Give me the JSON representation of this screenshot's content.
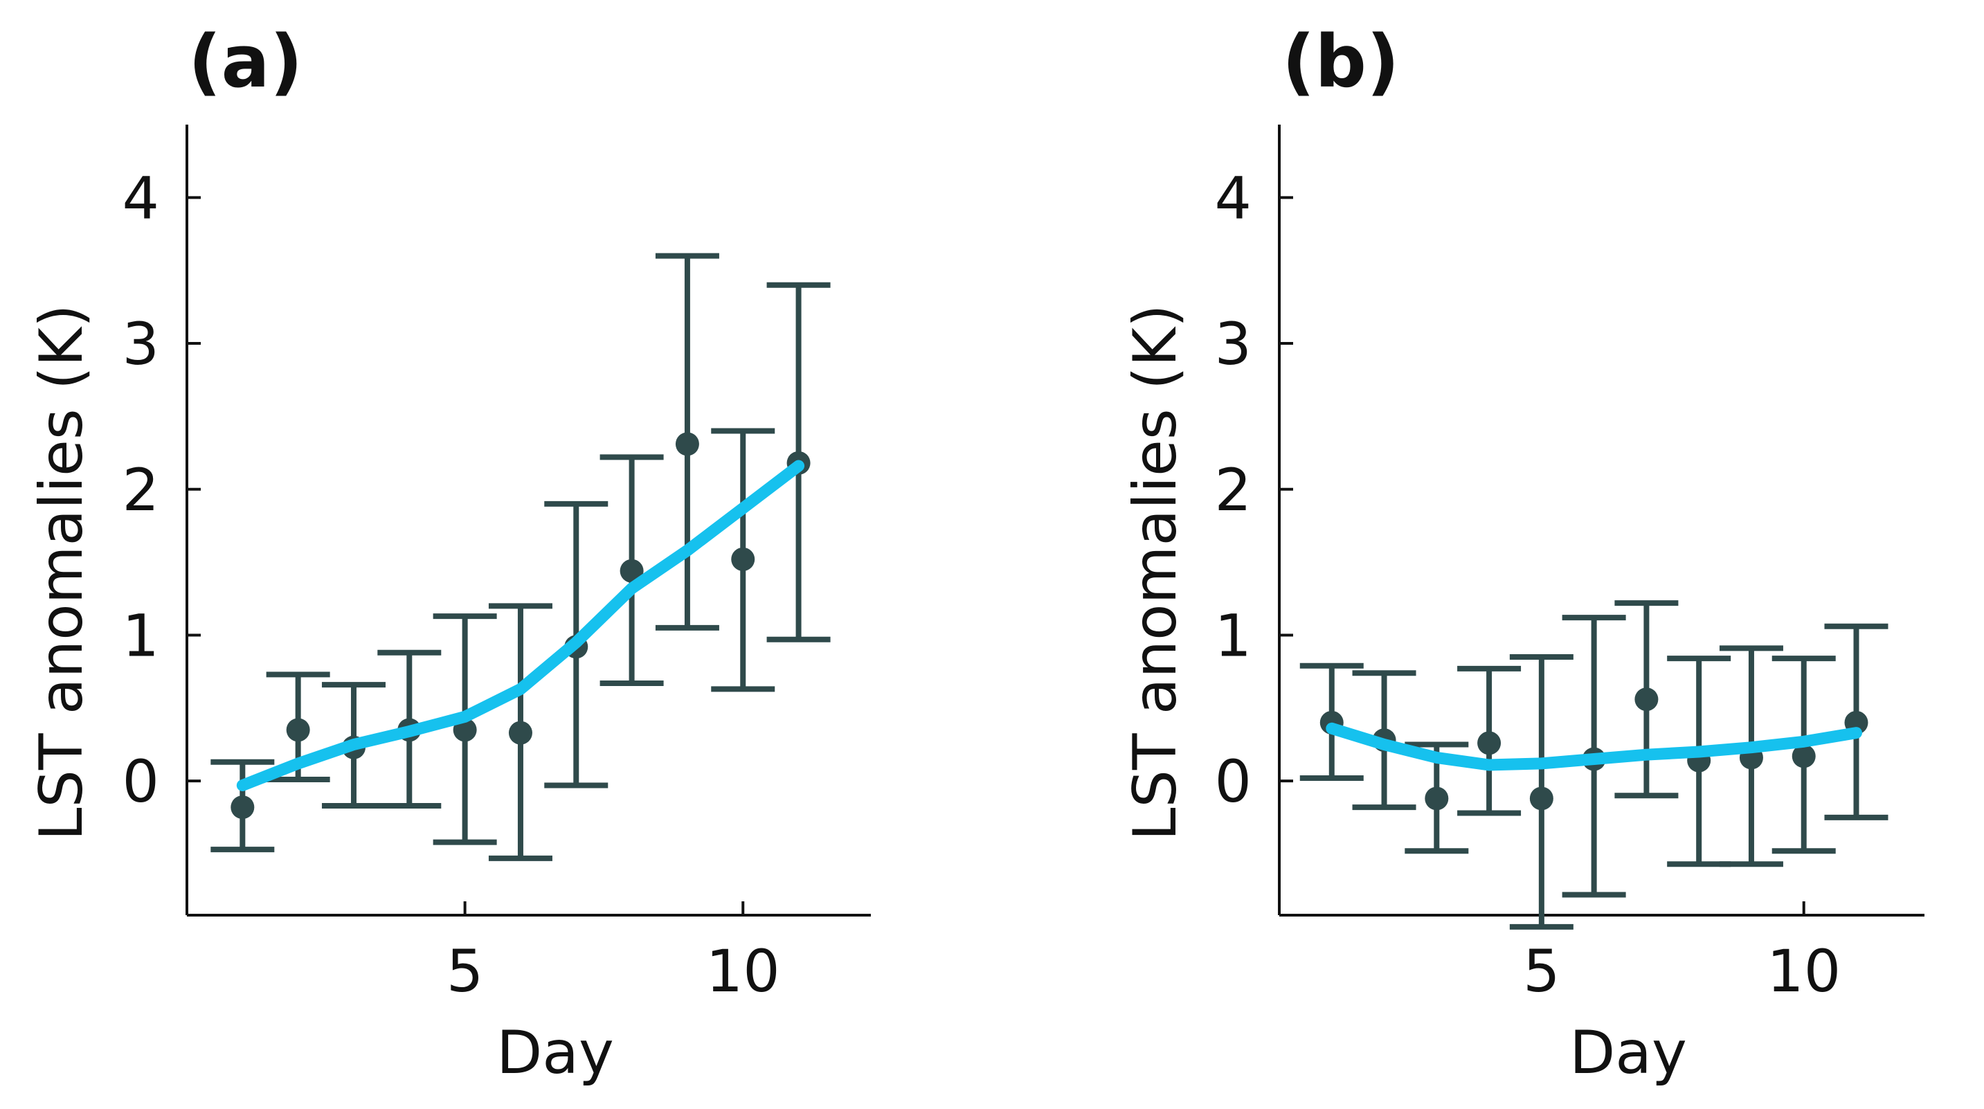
{
  "chart_data": [
    {
      "type": "line",
      "panel_label": "(a)",
      "title": "",
      "xlabel": "Day",
      "ylabel": "LST anomalies (K)",
      "xlim": [
        0.0,
        12.3
      ],
      "ylim": [
        -0.92,
        4.5
      ],
      "xticks": [
        5,
        10
      ],
      "yticks": [
        0,
        1,
        2,
        3,
        4
      ],
      "grid": false,
      "points": {
        "name": "mean",
        "x": [
          1,
          2,
          3,
          4,
          5,
          6,
          7,
          8,
          9,
          10,
          11
        ],
        "y": [
          -0.18,
          0.35,
          0.23,
          0.35,
          0.35,
          0.33,
          0.92,
          1.44,
          2.31,
          1.52,
          2.18
        ],
        "err_low": [
          -0.47,
          0.01,
          -0.17,
          -0.17,
          -0.42,
          -0.53,
          -0.03,
          0.67,
          1.05,
          0.63,
          0.97
        ],
        "err_high": [
          0.13,
          0.73,
          0.66,
          0.88,
          1.13,
          1.2,
          1.9,
          2.22,
          3.6,
          2.4,
          3.4
        ]
      },
      "fit_line": {
        "name": "trend",
        "x": [
          1,
          2,
          3,
          4,
          5,
          6,
          7,
          8,
          9,
          10,
          11
        ],
        "y": [
          -0.03,
          0.12,
          0.25,
          0.34,
          0.44,
          0.63,
          0.95,
          1.32,
          1.58,
          1.87,
          2.16
        ]
      }
    },
    {
      "type": "line",
      "panel_label": "(b)",
      "title": "",
      "xlabel": "Day",
      "ylabel": "LST anomalies (K)",
      "xlim": [
        0.0,
        12.3
      ],
      "ylim": [
        -0.92,
        4.5
      ],
      "xticks": [
        5,
        10
      ],
      "yticks": [
        0,
        1,
        2,
        3,
        4
      ],
      "grid": false,
      "points": {
        "name": "mean",
        "x": [
          1,
          2,
          3,
          4,
          5,
          6,
          7,
          8,
          9,
          10,
          11
        ],
        "y": [
          0.4,
          0.28,
          -0.12,
          0.26,
          -0.12,
          0.15,
          0.56,
          0.14,
          0.16,
          0.17,
          0.4
        ],
        "err_low": [
          0.02,
          -0.18,
          -0.48,
          -0.22,
          -1.0,
          -0.78,
          -0.1,
          -0.57,
          -0.57,
          -0.48,
          -0.25
        ],
        "err_high": [
          0.79,
          0.74,
          0.25,
          0.77,
          0.85,
          1.12,
          1.22,
          0.84,
          0.91,
          0.84,
          1.06
        ]
      },
      "fit_line": {
        "name": "trend",
        "x": [
          1,
          2,
          3,
          4,
          5,
          6,
          7,
          8,
          9,
          10,
          11
        ],
        "y": [
          0.36,
          0.25,
          0.16,
          0.11,
          0.12,
          0.15,
          0.18,
          0.2,
          0.23,
          0.27,
          0.33
        ]
      }
    }
  ],
  "colors": {
    "points": "#2f4a4b",
    "fit_line": "#16c1ee",
    "axes": "#111111"
  }
}
